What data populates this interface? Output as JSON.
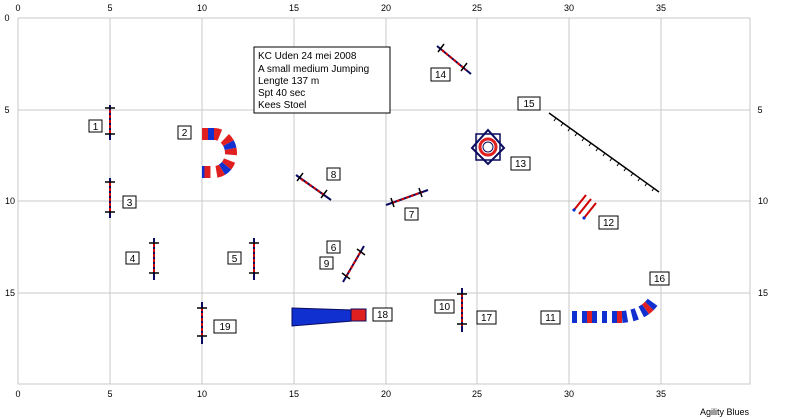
{
  "course": {
    "info_lines": [
      "KC Uden 24 mei 2008",
      "A small medium Jumping",
      "Lengte 137 m",
      "Spt 40 sec",
      "Kees Stoel"
    ],
    "credit": "Agility Blues"
  },
  "axes": {
    "x_ticks": [
      "0",
      "5",
      "10",
      "15",
      "20",
      "25",
      "30",
      "35"
    ],
    "y_ticks": [
      "0",
      "5",
      "10",
      "15"
    ]
  },
  "obstacles": {
    "o1": "1",
    "o2": "2",
    "o3": "3",
    "o4": "4",
    "o5": "5",
    "o6": "6",
    "o7": "7",
    "o8": "8",
    "o9": "9",
    "o10": "10",
    "o11": "11",
    "o12": "12",
    "o13": "13",
    "o14": "14",
    "o15": "15",
    "o16": "16",
    "o17": "17",
    "o18": "18",
    "o19": "19"
  },
  "colors": {
    "grid": "#c8c8c8",
    "blue": "#1030d0",
    "red": "#e02020",
    "pole": "#d00000",
    "navy": "#0a0a60"
  }
}
